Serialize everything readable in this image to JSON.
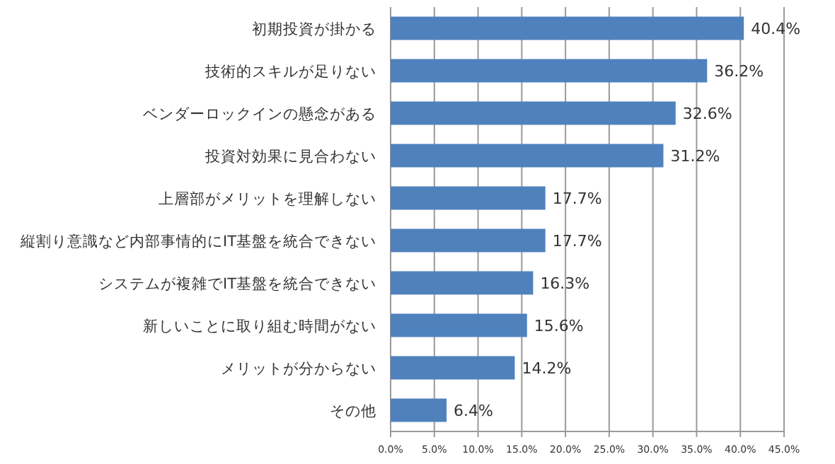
{
  "chart_data": {
    "type": "bar",
    "orientation": "horizontal",
    "categories": [
      "初期投資が掛かる",
      "技術的スキルが足りない",
      "ベンダーロックインの懸念がある",
      "投資対効果に見合わない",
      "上層部がメリットを理解しない",
      "縦割り意識など内部事情的にIT基盤を統合できない",
      "システムが複雑でIT基盤を統合できない",
      "新しいことに取り組む時間がない",
      "メリットが分からない",
      "その他"
    ],
    "values": [
      40.4,
      36.2,
      32.6,
      31.2,
      17.7,
      17.7,
      16.3,
      15.6,
      14.2,
      6.4
    ],
    "value_labels": [
      "40.4%",
      "36.2%",
      "32.6%",
      "31.2%",
      "17.7%",
      "17.7%",
      "16.3%",
      "15.6%",
      "14.2%",
      "6.4%"
    ],
    "color": "#4f81bd",
    "xlim": [
      0,
      45
    ],
    "xticks": [
      {
        "value": 0,
        "label": "0.0%"
      },
      {
        "value": 5,
        "label": "5.0%"
      },
      {
        "value": 10,
        "label": "10.0%"
      },
      {
        "value": 15,
        "label": "15.0%"
      },
      {
        "value": 20,
        "label": "20.0%"
      },
      {
        "value": 25,
        "label": "25.0%"
      },
      {
        "value": 30,
        "label": "30.0%"
      },
      {
        "value": 35,
        "label": "35.0%"
      },
      {
        "value": 40,
        "label": "40.0%"
      },
      {
        "value": 45,
        "label": "45.0%"
      }
    ],
    "grid": "x"
  }
}
